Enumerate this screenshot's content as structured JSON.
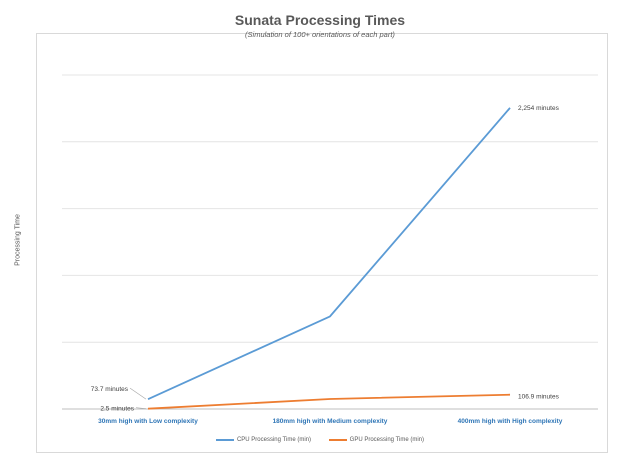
{
  "chart_data": {
    "type": "line",
    "title": "Sunata Processing Times",
    "subtitle": "(Simulation of 100+ orientations of each part)",
    "ylabel": "Processing Time",
    "xlabel": "",
    "categories": [
      "30mm high with Low complexity",
      "180mm high with Medium complexity",
      "400mm high with High complexity"
    ],
    "series": [
      {
        "name": "CPU Processing Time (min)",
        "color": "#5b9bd5",
        "values": [
          73.7,
          693,
          2254
        ],
        "labels": [
          "73.7 minutes",
          "",
          "2,254 minutes"
        ]
      },
      {
        "name": "GPU Processing Time (min)",
        "color": "#ed7d31",
        "values": [
          2.5,
          75,
          106.9
        ],
        "labels": [
          "2.5 minutes",
          "",
          "106.9 minutes"
        ]
      }
    ],
    "ylim": [
      0,
      2500
    ],
    "ygrid": true,
    "yticks_shown": false,
    "legend_position": "bottom"
  }
}
